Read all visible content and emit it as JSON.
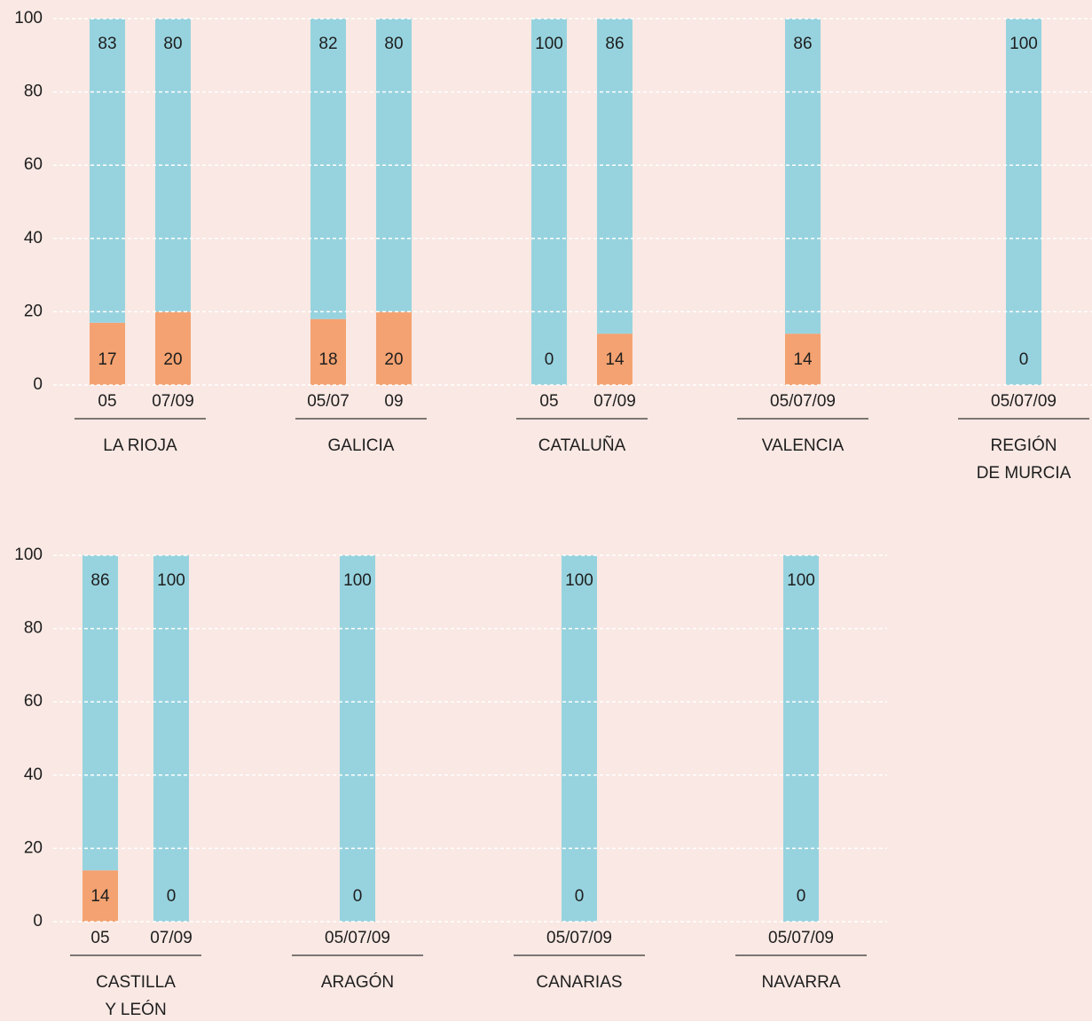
{
  "chart_data": [
    {
      "type": "bar",
      "stacked": true,
      "ylim": [
        0,
        100
      ],
      "yticks": [
        0,
        20,
        40,
        60,
        80,
        100
      ],
      "grid": true,
      "colors": [
        "#f4a271",
        "#97d3df"
      ],
      "groups": [
        {
          "label": [
            "LA RIOJA"
          ],
          "categories": [
            "05",
            "07/09"
          ],
          "series": [
            {
              "values": [
                17,
                20
              ]
            },
            {
              "values": [
                83,
                80
              ]
            }
          ]
        },
        {
          "label": [
            "GALICIA"
          ],
          "categories": [
            "05/07",
            "09"
          ],
          "series": [
            {
              "values": [
                18,
                20
              ]
            },
            {
              "values": [
                82,
                80
              ]
            }
          ]
        },
        {
          "label": [
            "CATALUÑA"
          ],
          "categories": [
            "05",
            "07/09"
          ],
          "series": [
            {
              "values": [
                0,
                14
              ]
            },
            {
              "values": [
                100,
                86
              ]
            }
          ]
        },
        {
          "label": [
            "VALENCIA"
          ],
          "categories": [
            "05/07/09"
          ],
          "series": [
            {
              "values": [
                14
              ]
            },
            {
              "values": [
                86
              ]
            }
          ]
        },
        {
          "label": [
            "REGIÓN",
            "DE MURCIA"
          ],
          "categories": [
            "05/07/09"
          ],
          "series": [
            {
              "values": [
                0
              ]
            },
            {
              "values": [
                100
              ]
            }
          ]
        }
      ]
    },
    {
      "type": "bar",
      "stacked": true,
      "ylim": [
        0,
        100
      ],
      "yticks": [
        0,
        20,
        40,
        60,
        80,
        100
      ],
      "grid": true,
      "colors": [
        "#f4a271",
        "#97d3df"
      ],
      "groups": [
        {
          "label": [
            "CASTILLA",
            "Y LEÓN"
          ],
          "categories": [
            "05",
            "07/09"
          ],
          "series": [
            {
              "values": [
                14,
                0
              ]
            },
            {
              "values": [
                86,
                100
              ]
            }
          ]
        },
        {
          "label": [
            "ARAGÓN"
          ],
          "categories": [
            "05/07/09"
          ],
          "series": [
            {
              "values": [
                0
              ]
            },
            {
              "values": [
                100
              ]
            }
          ]
        },
        {
          "label": [
            "CANARIAS"
          ],
          "categories": [
            "05/07/09"
          ],
          "series": [
            {
              "values": [
                0
              ]
            },
            {
              "values": [
                100
              ]
            }
          ]
        },
        {
          "label": [
            "NAVARRA"
          ],
          "categories": [
            "05/07/09"
          ],
          "series": [
            {
              "values": [
                0
              ]
            },
            {
              "values": [
                100
              ]
            }
          ]
        }
      ]
    }
  ]
}
